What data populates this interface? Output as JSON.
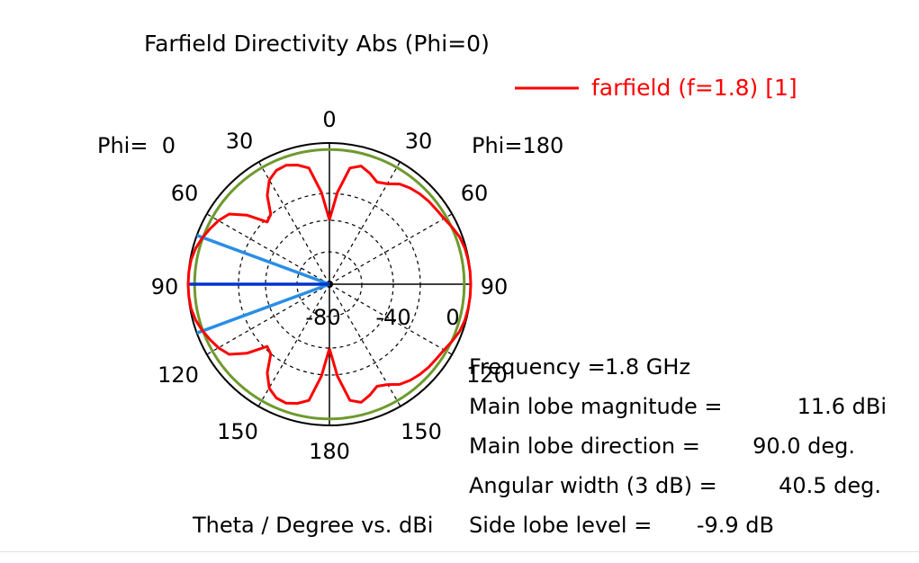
{
  "chart_data": {
    "type": "polar",
    "title": "Farfield Directivity Abs (Phi=0)",
    "xlabel": "Theta / Degree vs. dBi",
    "phi_left_label": "Phi=  0",
    "phi_right_label": "Phi=180",
    "angle_labels": {
      "top": "0",
      "bottom": "180",
      "left": [
        "30",
        "60",
        "90",
        "120",
        "150"
      ],
      "right": [
        "30",
        "60",
        "90",
        "120",
        "150"
      ]
    },
    "radial_tick_labels": [
      "-80",
      "-40",
      "0"
    ],
    "radial_range_db": [
      -120,
      11.6
    ],
    "legend": {
      "position": "top-right",
      "label": "farfield (f=1.8) [1]",
      "color": "#ff0000"
    },
    "series": [
      {
        "name": "farfield (f=1.8) [1]",
        "color": "#ff0000",
        "theta_deg": [
          0,
          5,
          10,
          15,
          20,
          25,
          30,
          35,
          40,
          45,
          50,
          55,
          60,
          65,
          70,
          75,
          80,
          85,
          90
        ],
        "right_dbi": [
          -60,
          -34,
          -10,
          -6,
          -10,
          -15,
          -12,
          -6,
          -3,
          -1,
          0.5,
          1.5,
          3,
          6,
          9,
          10.5,
          11.2,
          11.5,
          11.6
        ],
        "left_dbi": [
          -60,
          -34,
          -10,
          -5,
          -2,
          -3,
          -8,
          -19,
          -35,
          -38,
          -20,
          -6,
          -1,
          2.5,
          6,
          9,
          10.8,
          11.4,
          11.6
        ]
      }
    ],
    "reference_circle": {
      "color": "#6e9a2e",
      "value_dbi": 5.6
    },
    "main_lobe_line": {
      "color": "#0033cc",
      "theta_deg": 90,
      "side": "Phi=0"
    },
    "beamwidth_lines": {
      "color": "#2a8ee6",
      "theta_deg": [
        69.75,
        110.25
      ],
      "side": "Phi=0"
    },
    "annotations": [
      {
        "label": "Frequency =",
        "value": "1.8 GHz"
      },
      {
        "label": "Main lobe magnitude =",
        "value": "11.6 dBi"
      },
      {
        "label": "Main lobe direction =",
        "value": "90.0 deg."
      },
      {
        "label": "Angular width (3 dB) =",
        "value": "40.5 deg."
      },
      {
        "label": "Side lobe level =",
        "value": "-9.9 dB"
      }
    ]
  }
}
